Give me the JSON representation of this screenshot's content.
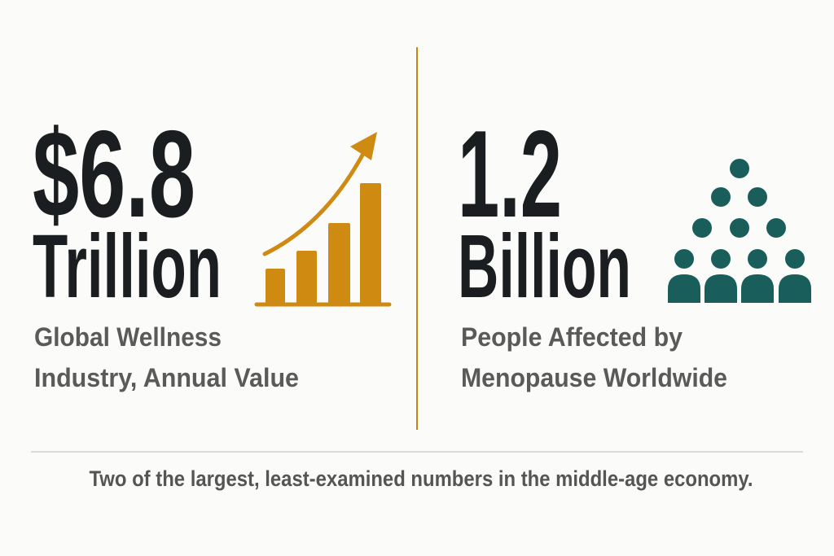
{
  "stats": [
    {
      "value": "$6.8",
      "unit": "Trillion",
      "description": [
        "Global Wellness",
        "Industry, Annual Value"
      ]
    },
    {
      "value": "1.2",
      "unit": "Billion",
      "description": [
        "People Affected by",
        "Menopause Worldwide"
      ]
    }
  ],
  "footer": "Two of the largest, least-examined numbers in the middle-age economy."
}
